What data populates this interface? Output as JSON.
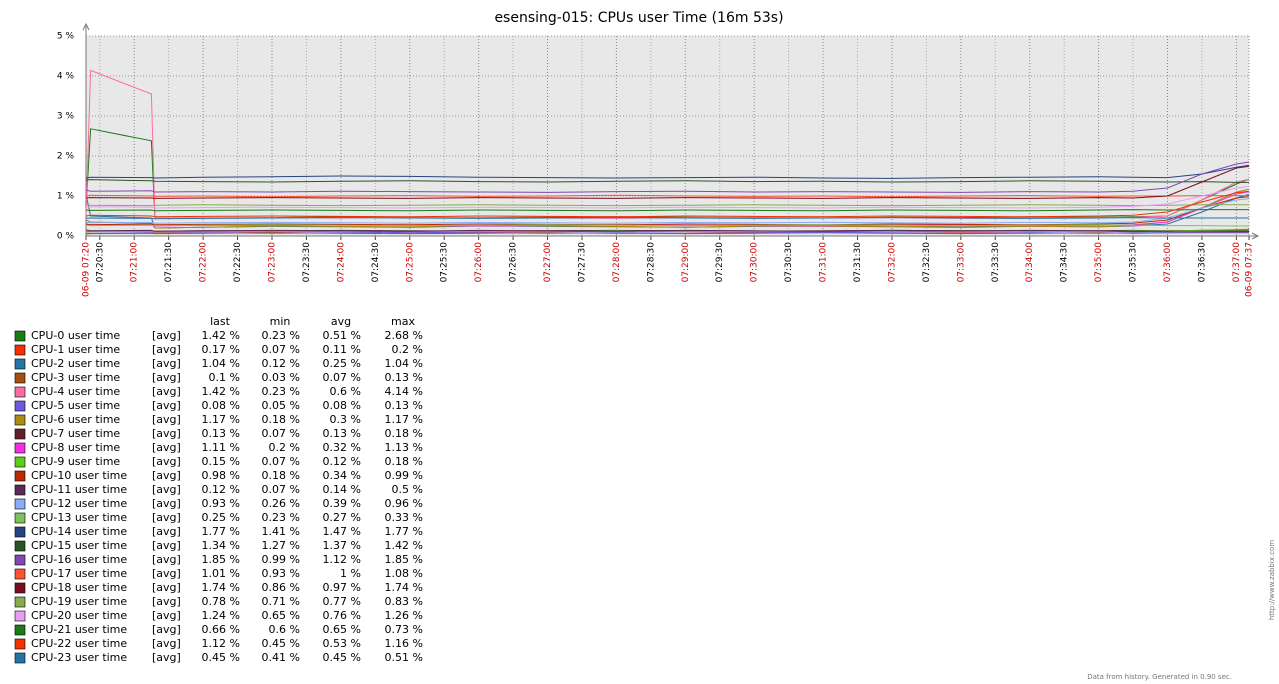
{
  "chart_data": {
    "type": "line",
    "title": "esensing-015: CPUs user Time (16m 53s)",
    "footer": "Data from history. Generated in 0.90 sec.",
    "watermark": "http://www.zabbix.com",
    "grid": true,
    "background": "#e8e8e8",
    "major_tick_color": "#cc0000",
    "ylim": [
      0,
      5
    ],
    "yticks": [
      {
        "value": 0,
        "label": "0 %"
      },
      {
        "value": 1,
        "label": "1 %"
      },
      {
        "value": 2,
        "label": "2 %"
      },
      {
        "value": 3,
        "label": "3 %"
      },
      {
        "value": 4,
        "label": "4 %"
      },
      {
        "value": 5,
        "label": "5 %"
      }
    ],
    "xlim": [
      "07:20:18",
      "07:37:11"
    ],
    "xticks": [
      {
        "value": "07:20:18",
        "label": "06-09 07:20"
      },
      "07:20:30",
      "07:21:00",
      "07:21:30",
      "07:22:00",
      "07:22:30",
      "07:23:00",
      "07:23:30",
      "07:24:00",
      "07:24:30",
      "07:25:00",
      "07:25:30",
      "07:26:00",
      "07:26:30",
      "07:27:00",
      "07:27:30",
      "07:28:00",
      "07:28:30",
      "07:29:00",
      "07:29:30",
      "07:30:00",
      "07:30:30",
      "07:31:00",
      "07:31:30",
      "07:32:00",
      "07:32:30",
      "07:33:00",
      "07:33:30",
      "07:34:00",
      "07:34:30",
      "07:35:00",
      "07:35:30",
      "07:36:00",
      "07:36:30",
      "07:37:00",
      {
        "value": "07:37:11",
        "label": "06-09 07:37"
      }
    ],
    "legend_columns": [
      "last",
      "min",
      "avg",
      "max"
    ],
    "x": [
      "07:20:18",
      "07:20:22",
      "07:21:15",
      "07:21:18",
      "07:22:00",
      "07:23:00",
      "07:24:00",
      "07:25:00",
      "07:26:00",
      "07:27:00",
      "07:28:00",
      "07:29:00",
      "07:30:00",
      "07:31:00",
      "07:32:00",
      "07:33:00",
      "07:34:00",
      "07:35:00",
      "07:35:30",
      "07:36:00",
      "07:36:30",
      "07:37:00",
      "07:37:11"
    ],
    "series": [
      {
        "name": "CPU-0 user time",
        "func": "[avg]",
        "color": "#1a7c11",
        "stats": [
          "1.42 %",
          "0.23 %",
          "0.51 %",
          "2.68 %"
        ],
        "values": [
          0.7,
          2.68,
          2.38,
          0.45,
          0.45,
          0.46,
          0.48,
          0.47,
          0.46,
          0.47,
          0.48,
          0.47,
          0.46,
          0.45,
          0.47,
          0.46,
          0.48,
          0.47,
          0.48,
          0.5,
          0.9,
          1.3,
          1.42
        ]
      },
      {
        "name": "CPU-1 user time",
        "func": "[avg]",
        "color": "#f63100",
        "stats": [
          "0.17 %",
          "0.07 %",
          "0.11 %",
          "0.2 %"
        ],
        "values": [
          0.1,
          0.12,
          0.11,
          0.1,
          0.11,
          0.1,
          0.12,
          0.11,
          0.1,
          0.11,
          0.12,
          0.11,
          0.1,
          0.11,
          0.12,
          0.1,
          0.11,
          0.12,
          0.11,
          0.12,
          0.14,
          0.16,
          0.17
        ]
      },
      {
        "name": "CPU-2 user time",
        "func": "[avg]",
        "color": "#2774a4",
        "stats": [
          "1.04 %",
          "0.12 %",
          "0.25 %",
          "1.04 %"
        ],
        "values": [
          1.04,
          0.5,
          0.45,
          0.2,
          0.22,
          0.24,
          0.23,
          0.22,
          0.25,
          0.24,
          0.23,
          0.22,
          0.24,
          0.25,
          0.23,
          0.22,
          0.24,
          0.23,
          0.25,
          0.3,
          0.6,
          0.95,
          1.04
        ]
      },
      {
        "name": "CPU-3 user time",
        "func": "[avg]",
        "color": "#a54f10",
        "stats": [
          "0.1 %",
          "0.03 %",
          "0.07 %",
          "0.13 %"
        ],
        "values": [
          0.05,
          0.06,
          0.07,
          0.06,
          0.07,
          0.08,
          0.07,
          0.06,
          0.07,
          0.08,
          0.07,
          0.06,
          0.07,
          0.08,
          0.07,
          0.06,
          0.07,
          0.08,
          0.07,
          0.08,
          0.09,
          0.1,
          0.1
        ]
      },
      {
        "name": "CPU-4 user time",
        "func": "[avg]",
        "color": "#fc6ea3",
        "stats": [
          "1.42 %",
          "0.23 %",
          "0.6 %",
          "4.14 %"
        ],
        "values": [
          0.5,
          4.14,
          3.55,
          0.45,
          0.44,
          0.46,
          0.45,
          0.47,
          0.46,
          0.45,
          0.44,
          0.46,
          0.47,
          0.45,
          0.46,
          0.44,
          0.45,
          0.46,
          0.47,
          0.5,
          0.9,
          1.35,
          1.42
        ]
      },
      {
        "name": "CPU-5 user time",
        "func": "[avg]",
        "color": "#6c59dc",
        "stats": [
          "0.08 %",
          "0.05 %",
          "0.08 %",
          "0.13 %"
        ],
        "values": [
          0.06,
          0.07,
          0.08,
          0.07,
          0.08,
          0.07,
          0.08,
          0.09,
          0.08,
          0.07,
          0.08,
          0.07,
          0.08,
          0.09,
          0.08,
          0.07,
          0.08,
          0.07,
          0.08,
          0.08,
          0.08,
          0.08,
          0.08
        ]
      },
      {
        "name": "CPU-6 user time",
        "func": "[avg]",
        "color": "#ac8c14",
        "stats": [
          "1.17 %",
          "0.18 %",
          "0.3 %",
          "1.17 %"
        ],
        "values": [
          0.4,
          0.35,
          0.32,
          0.2,
          0.22,
          0.25,
          0.24,
          0.23,
          0.26,
          0.25,
          0.24,
          0.22,
          0.25,
          0.24,
          0.23,
          0.25,
          0.24,
          0.23,
          0.26,
          0.35,
          0.7,
          1.1,
          1.17
        ]
      },
      {
        "name": "CPU-7 user time",
        "func": "[avg]",
        "color": "#611f27",
        "stats": [
          "0.13 %",
          "0.07 %",
          "0.13 %",
          "0.18 %"
        ],
        "values": [
          0.1,
          0.12,
          0.13,
          0.12,
          0.13,
          0.12,
          0.14,
          0.13,
          0.12,
          0.13,
          0.14,
          0.13,
          0.12,
          0.13,
          0.14,
          0.13,
          0.12,
          0.13,
          0.14,
          0.13,
          0.14,
          0.13,
          0.13
        ]
      },
      {
        "name": "CPU-8 user time",
        "func": "[avg]",
        "color": "#f230e0",
        "stats": [
          "1.11 %",
          "0.2 %",
          "0.32 %",
          "1.13 %"
        ],
        "values": [
          0.3,
          0.28,
          0.3,
          0.25,
          0.27,
          0.26,
          0.28,
          0.27,
          0.25,
          0.26,
          0.28,
          0.27,
          0.26,
          0.25,
          0.27,
          0.28,
          0.26,
          0.27,
          0.28,
          0.35,
          0.7,
          1.05,
          1.11
        ]
      },
      {
        "name": "CPU-9 user time",
        "func": "[avg]",
        "color": "#5ccd18",
        "stats": [
          "0.15 %",
          "0.07 %",
          "0.12 %",
          "0.18 %"
        ],
        "values": [
          0.1,
          0.11,
          0.12,
          0.11,
          0.12,
          0.11,
          0.13,
          0.12,
          0.11,
          0.12,
          0.13,
          0.12,
          0.11,
          0.12,
          0.13,
          0.12,
          0.11,
          0.12,
          0.13,
          0.13,
          0.14,
          0.15,
          0.15
        ]
      },
      {
        "name": "CPU-10 user time",
        "func": "[avg]",
        "color": "#bb2a02",
        "stats": [
          "0.98 %",
          "0.18 %",
          "0.34 %",
          "0.99 %"
        ],
        "values": [
          0.3,
          0.28,
          0.3,
          0.28,
          0.29,
          0.3,
          0.29,
          0.28,
          0.3,
          0.29,
          0.28,
          0.3,
          0.29,
          0.28,
          0.3,
          0.29,
          0.28,
          0.3,
          0.32,
          0.4,
          0.7,
          0.95,
          0.98
        ]
      },
      {
        "name": "CPU-11 user time",
        "func": "[avg]",
        "color": "#5a2b57",
        "stats": [
          "0.12 %",
          "0.07 %",
          "0.14 %",
          "0.5 %"
        ],
        "values": [
          0.15,
          0.13,
          0.14,
          0.12,
          0.13,
          0.14,
          0.13,
          0.12,
          0.14,
          0.13,
          0.12,
          0.14,
          0.13,
          0.12,
          0.14,
          0.13,
          0.14,
          0.13,
          0.12,
          0.12,
          0.12,
          0.12,
          0.12
        ]
      },
      {
        "name": "CPU-12 user time",
        "func": "[avg]",
        "color": "#89abf8",
        "stats": [
          "0.93 %",
          "0.26 %",
          "0.39 %",
          "0.96 %"
        ],
        "values": [
          0.35,
          0.33,
          0.34,
          0.32,
          0.33,
          0.34,
          0.33,
          0.32,
          0.34,
          0.33,
          0.32,
          0.34,
          0.33,
          0.34,
          0.33,
          0.32,
          0.34,
          0.33,
          0.35,
          0.45,
          0.7,
          0.9,
          0.93
        ]
      },
      {
        "name": "CPU-13 user time",
        "func": "[avg]",
        "color": "#7ec25c",
        "stats": [
          "0.25 %",
          "0.23 %",
          "0.27 %",
          "0.33 %"
        ],
        "values": [
          0.27,
          0.26,
          0.27,
          0.26,
          0.27,
          0.28,
          0.27,
          0.26,
          0.27,
          0.28,
          0.27,
          0.26,
          0.27,
          0.28,
          0.27,
          0.26,
          0.27,
          0.28,
          0.27,
          0.26,
          0.26,
          0.25,
          0.25
        ]
      },
      {
        "name": "CPU-14 user time",
        "func": "[avg]",
        "color": "#274482",
        "stats": [
          "1.77 %",
          "1.41 %",
          "1.47 %",
          "1.77 %"
        ],
        "values": [
          1.45,
          1.47,
          1.46,
          1.45,
          1.47,
          1.48,
          1.5,
          1.49,
          1.47,
          1.46,
          1.45,
          1.46,
          1.47,
          1.45,
          1.44,
          1.46,
          1.47,
          1.48,
          1.47,
          1.46,
          1.55,
          1.72,
          1.77
        ]
      },
      {
        "name": "CPU-15 user time",
        "func": "[avg]",
        "color": "#2b5429",
        "stats": [
          "1.34 %",
          "1.27 %",
          "1.37 %",
          "1.42 %"
        ],
        "values": [
          1.4,
          1.41,
          1.38,
          1.37,
          1.36,
          1.35,
          1.37,
          1.38,
          1.36,
          1.35,
          1.37,
          1.38,
          1.36,
          1.37,
          1.35,
          1.36,
          1.38,
          1.37,
          1.36,
          1.35,
          1.36,
          1.34,
          1.34
        ]
      },
      {
        "name": "CPU-16 user time",
        "func": "[avg]",
        "color": "#8048b4",
        "stats": [
          "1.85 %",
          "0.99 %",
          "1.12 %",
          "1.85 %"
        ],
        "values": [
          1.15,
          1.12,
          1.13,
          1.1,
          1.11,
          1.1,
          1.12,
          1.11,
          1.1,
          1.09,
          1.11,
          1.12,
          1.1,
          1.11,
          1.1,
          1.09,
          1.11,
          1.1,
          1.12,
          1.2,
          1.55,
          1.8,
          1.85
        ]
      },
      {
        "name": "CPU-17 user time",
        "func": "[avg]",
        "color": "#fd5434",
        "stats": [
          "1.01 %",
          "0.93 %",
          "1 %",
          "1.08 %"
        ],
        "values": [
          1.0,
          1.02,
          1.0,
          0.99,
          1.0,
          0.98,
          1.0,
          1.01,
          0.99,
          1.0,
          1.02,
          1.0,
          0.99,
          1.0,
          0.98,
          1.0,
          1.01,
          0.99,
          1.0,
          1.0,
          1.01,
          1.01,
          1.01
        ]
      },
      {
        "name": "CPU-18 user time",
        "func": "[avg]",
        "color": "#790e1f",
        "stats": [
          "1.74 %",
          "0.86 %",
          "0.97 %",
          "1.74 %"
        ],
        "values": [
          0.95,
          0.96,
          0.95,
          0.94,
          0.95,
          0.96,
          0.95,
          0.94,
          0.96,
          0.95,
          0.94,
          0.96,
          0.95,
          0.94,
          0.96,
          0.95,
          0.94,
          0.96,
          0.95,
          1.0,
          1.35,
          1.7,
          1.74
        ]
      },
      {
        "name": "CPU-19 user time",
        "func": "[avg]",
        "color": "#87ac4d",
        "stats": [
          "0.78 %",
          "0.71 %",
          "0.77 %",
          "0.83 %"
        ],
        "values": [
          0.78,
          0.77,
          0.76,
          0.77,
          0.78,
          0.77,
          0.76,
          0.77,
          0.78,
          0.77,
          0.76,
          0.77,
          0.78,
          0.77,
          0.76,
          0.77,
          0.78,
          0.77,
          0.76,
          0.77,
          0.78,
          0.78,
          0.78
        ]
      },
      {
        "name": "CPU-20 user time",
        "func": "[avg]",
        "color": "#e89df4",
        "stats": [
          "1.24 %",
          "0.65 %",
          "0.76 %",
          "1.26 %"
        ],
        "values": [
          0.72,
          0.73,
          0.72,
          0.7,
          0.71,
          0.72,
          0.71,
          0.7,
          0.72,
          0.71,
          0.7,
          0.72,
          0.71,
          0.7,
          0.72,
          0.71,
          0.7,
          0.72,
          0.74,
          0.8,
          1.0,
          1.2,
          1.24
        ]
      },
      {
        "name": "CPU-21 user time",
        "func": "[avg]",
        "color": "#1a7c11",
        "stats": [
          "0.66 %",
          "0.6 %",
          "0.65 %",
          "0.73 %"
        ],
        "values": [
          0.65,
          0.64,
          0.65,
          0.63,
          0.64,
          0.65,
          0.64,
          0.63,
          0.65,
          0.64,
          0.63,
          0.65,
          0.64,
          0.63,
          0.65,
          0.64,
          0.63,
          0.65,
          0.66,
          0.65,
          0.66,
          0.66,
          0.66
        ]
      },
      {
        "name": "CPU-22 user time",
        "func": "[avg]",
        "color": "#f63100",
        "stats": [
          "1.12 %",
          "0.45 %",
          "0.53 %",
          "1.16 %"
        ],
        "values": [
          0.5,
          0.52,
          0.5,
          0.48,
          0.49,
          0.5,
          0.49,
          0.48,
          0.5,
          0.49,
          0.48,
          0.5,
          0.49,
          0.48,
          0.5,
          0.49,
          0.48,
          0.5,
          0.52,
          0.6,
          0.85,
          1.08,
          1.12
        ]
      },
      {
        "name": "CPU-23 user time",
        "func": "[avg]",
        "color": "#2774a4",
        "stats": [
          "0.45 %",
          "0.41 %",
          "0.45 %",
          "0.51 %"
        ],
        "values": [
          0.44,
          0.45,
          0.44,
          0.43,
          0.44,
          0.45,
          0.46,
          0.45,
          0.44,
          0.45,
          0.46,
          0.45,
          0.44,
          0.45,
          0.46,
          0.45,
          0.44,
          0.45,
          0.46,
          0.45,
          0.45,
          0.45,
          0.45
        ]
      }
    ]
  }
}
